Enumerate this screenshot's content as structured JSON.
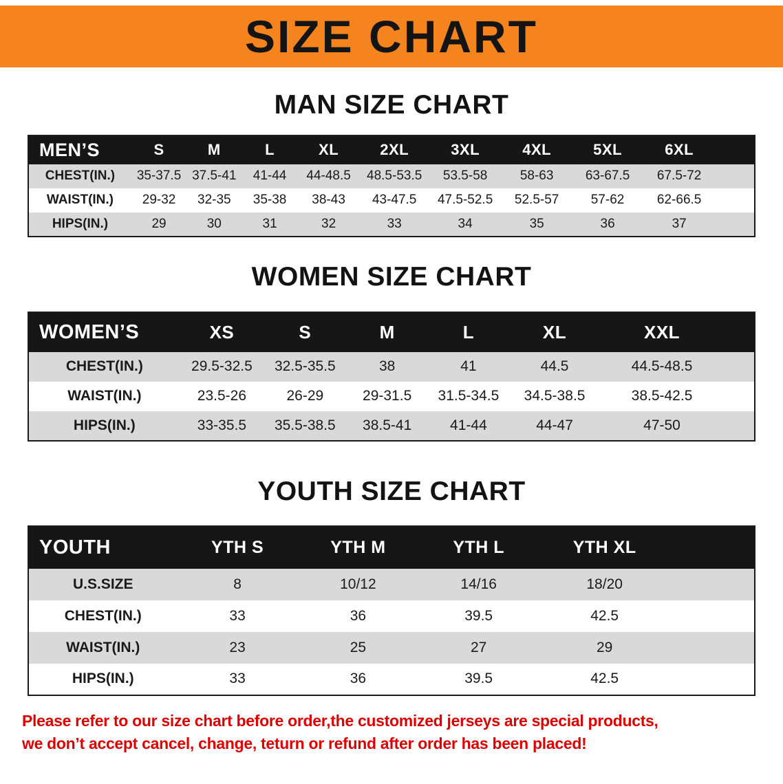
{
  "banner": {
    "title": "SIZE CHART"
  },
  "colors": {
    "banner-bg": "#f5831e",
    "header-bg": "#161616",
    "row-gray": "#d9d9d9",
    "disclaimer-red": "#dd0000"
  },
  "sections": [
    {
      "heading": "MAN SIZE CHART",
      "table": {
        "header": [
          "MEN’S",
          "S",
          "M",
          "L",
          "XL",
          "2XL",
          "3XL",
          "4XL",
          "5XL",
          "6XL"
        ],
        "rows": [
          [
            "CHEST(IN.)",
            "35-37.5",
            "37.5-41",
            "41-44",
            "44-48.5",
            "48.5-53.5",
            "53.5-58",
            "58-63",
            "63-67.5",
            "67.5-72"
          ],
          [
            "WAIST(IN.)",
            "29-32",
            "32-35",
            "35-38",
            "38-43",
            "43-47.5",
            "47.5-52.5",
            "52.5-57",
            "57-62",
            "62-66.5"
          ],
          [
            "HIPS(IN.)",
            "29",
            "30",
            "31",
            "32",
            "33",
            "34",
            "35",
            "36",
            "37"
          ]
        ]
      }
    },
    {
      "heading": "WOMEN SIZE CHART",
      "table": {
        "header": [
          "WOMEN’S",
          "XS",
          "S",
          "M",
          "L",
          "XL",
          "XXL"
        ],
        "rows": [
          [
            "CHEST(IN.)",
            "29.5-32.5",
            "32.5-35.5",
            "38",
            "41",
            "44.5",
            "44.5-48.5"
          ],
          [
            "WAIST(IN.)",
            "23.5-26",
            "26-29",
            "29-31.5",
            "31.5-34.5",
            "34.5-38.5",
            "38.5-42.5"
          ],
          [
            "HIPS(IN.)",
            "33-35.5",
            "35.5-38.5",
            "38.5-41",
            "41-44",
            "44-47",
            "47-50"
          ]
        ]
      }
    },
    {
      "heading": "YOUTH SIZE CHART",
      "table": {
        "header": [
          "YOUTH",
          "YTH S",
          "YTH M",
          "YTH L",
          "YTH XL"
        ],
        "rows": [
          [
            "U.S.SIZE",
            "8",
            "10/12",
            "14/16",
            "18/20"
          ],
          [
            "CHEST(IN.)",
            "33",
            "36",
            "39.5",
            "42.5"
          ],
          [
            "WAIST(IN.)",
            "23",
            "25",
            "27",
            "29"
          ],
          [
            "HIPS(IN.)",
            "33",
            "36",
            "39.5",
            "42.5"
          ]
        ]
      }
    }
  ],
  "disclaimer": {
    "line1": "Please refer to our size chart before order,the customized jerseys are special products,",
    "line2": "we don’t accept cancel, change, teturn or refund after order has been placed!"
  }
}
